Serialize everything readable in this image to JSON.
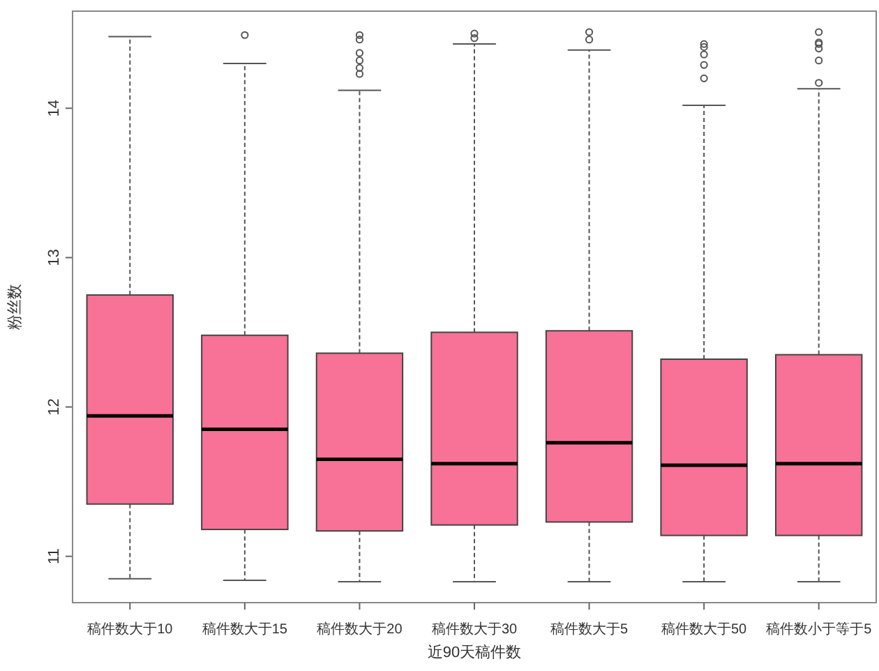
{
  "chart_data": {
    "type": "box",
    "xlabel": "近90天稿件数",
    "ylabel": "粉丝数",
    "color": "#f87196",
    "categories": [
      "稿件数大于10",
      "稿件数大于15",
      "稿件数大于20",
      "稿件数大于30",
      "稿件数大于5",
      "稿件数大于50",
      "稿件数小于等于5"
    ],
    "boxes": [
      {
        "low": 10.85,
        "q1": 11.35,
        "median": 11.94,
        "q3": 12.75,
        "high": 14.48
      },
      {
        "low": 10.84,
        "q1": 11.18,
        "median": 11.85,
        "q3": 12.48,
        "high": 14.3,
        "outliers": [
          14.49
        ]
      },
      {
        "low": 10.83,
        "q1": 11.17,
        "median": 11.65,
        "q3": 12.36,
        "high": 14.12,
        "outliers": [
          14.49,
          14.46,
          14.37,
          14.32,
          14.27,
          14.23
        ]
      },
      {
        "low": 10.83,
        "q1": 11.21,
        "median": 11.62,
        "q3": 12.5,
        "high": 14.43,
        "outliers": [
          14.5,
          14.47
        ]
      },
      {
        "low": 10.83,
        "q1": 11.23,
        "median": 11.76,
        "q3": 12.51,
        "high": 14.39,
        "outliers": [
          14.51,
          14.46
        ]
      },
      {
        "low": 10.83,
        "q1": 11.14,
        "median": 11.61,
        "q3": 12.32,
        "high": 14.02,
        "outliers": [
          14.43,
          14.41,
          14.36,
          14.29,
          14.2
        ]
      },
      {
        "low": 10.83,
        "q1": 11.14,
        "median": 11.62,
        "q3": 12.35,
        "high": 14.13,
        "outliers": [
          14.51,
          14.44,
          14.43,
          14.4,
          14.32,
          14.17
        ]
      }
    ],
    "ylim": [
      10.69,
      14.65
    ],
    "yticks": [
      11,
      12,
      13,
      14
    ]
  }
}
